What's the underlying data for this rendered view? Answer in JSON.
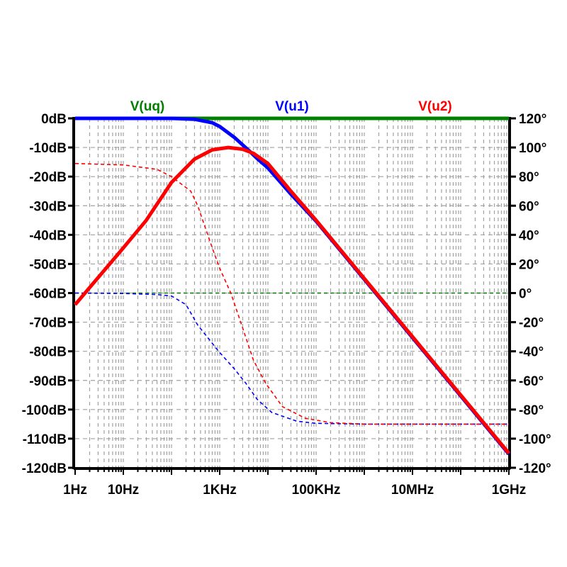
{
  "chart_data": {
    "type": "line",
    "title": "",
    "xscale": "log",
    "xlim": [
      1,
      1000000000
    ],
    "xticks": [
      {
        "value": 1,
        "label": "1Hz"
      },
      {
        "value": 10,
        "label": "10Hz"
      },
      {
        "value": 1000,
        "label": "1KHz"
      },
      {
        "value": 100000,
        "label": "100KHz"
      },
      {
        "value": 10000000,
        "label": "10MHz"
      },
      {
        "value": 1000000000,
        "label": "1GHz"
      }
    ],
    "ylim_left": [
      -120,
      0
    ],
    "yticks_left": [
      "0dB",
      "-10dB",
      "-20dB",
      "-30dB",
      "-40dB",
      "-50dB",
      "-60dB",
      "-70dB",
      "-80dB",
      "-90dB",
      "-100dB",
      "-110dB",
      "-120dB"
    ],
    "ylim_right": [
      -120,
      120
    ],
    "yticks_right": [
      "120°",
      "100°",
      "80°",
      "60°",
      "40°",
      "20°",
      "0°",
      "-20°",
      "-40°",
      "-60°",
      "-80°",
      "-100°",
      "-120°"
    ],
    "grid": true,
    "legend_placement": "top",
    "series": [
      {
        "name": "V(uq)",
        "color": "#008000",
        "magnitude_db": [
          [
            1,
            0
          ],
          [
            1000000000,
            0
          ]
        ],
        "phase_deg": [
          [
            1,
            0
          ],
          [
            1000000000,
            0
          ]
        ]
      },
      {
        "name": "V(u1)",
        "color": "#0000ff",
        "magnitude_db": [
          [
            1,
            0
          ],
          [
            100,
            0
          ],
          [
            300,
            -0.3
          ],
          [
            700,
            -1.5
          ],
          [
            1000,
            -2.8
          ],
          [
            2000,
            -6.5
          ],
          [
            4000,
            -11
          ],
          [
            6000,
            -13.8
          ],
          [
            10000,
            -17
          ],
          [
            30000,
            -26
          ],
          [
            100000,
            -35.3
          ],
          [
            1000000,
            -55.3
          ],
          [
            10000000,
            -75.3
          ],
          [
            100000000,
            -95.3
          ],
          [
            1000000000,
            -115.3
          ]
        ],
        "phase_deg": [
          [
            1,
            0
          ],
          [
            10,
            -0.3
          ],
          [
            50,
            -1
          ],
          [
            100,
            -2
          ],
          [
            200,
            -8
          ],
          [
            350,
            -22
          ],
          [
            950,
            -40
          ],
          [
            2000,
            -52
          ],
          [
            3500,
            -62
          ],
          [
            6000,
            -73
          ],
          [
            12000,
            -82
          ],
          [
            40000,
            -88
          ],
          [
            100000,
            -89.5
          ],
          [
            1000000,
            -90
          ],
          [
            1000000000,
            -90
          ]
        ]
      },
      {
        "name": "V(u2)",
        "color": "#ff0000",
        "magnitude_db": [
          [
            1,
            -64
          ],
          [
            10,
            -44.5
          ],
          [
            30,
            -35
          ],
          [
            100,
            -22
          ],
          [
            300,
            -14
          ],
          [
            700,
            -10.8
          ],
          [
            1500,
            -10
          ],
          [
            3000,
            -10.6
          ],
          [
            5000,
            -12
          ],
          [
            10000,
            -15.5
          ],
          [
            30000,
            -25
          ],
          [
            100000,
            -35
          ],
          [
            1000000,
            -55
          ],
          [
            10000000,
            -75
          ],
          [
            100000000,
            -95
          ],
          [
            1000000000,
            -115
          ]
        ],
        "phase_deg": [
          [
            1,
            89
          ],
          [
            10,
            88
          ],
          [
            50,
            85
          ],
          [
            100,
            80
          ],
          [
            250,
            70
          ],
          [
            350,
            60
          ],
          [
            700,
            31
          ],
          [
            1000,
            17
          ],
          [
            1700,
            0
          ],
          [
            3000,
            -24
          ],
          [
            5000,
            -46
          ],
          [
            9000,
            -62
          ],
          [
            20000,
            -78
          ],
          [
            60000,
            -86
          ],
          [
            200000,
            -89
          ],
          [
            1000000,
            -90
          ],
          [
            1000000000,
            -90
          ]
        ]
      }
    ]
  }
}
